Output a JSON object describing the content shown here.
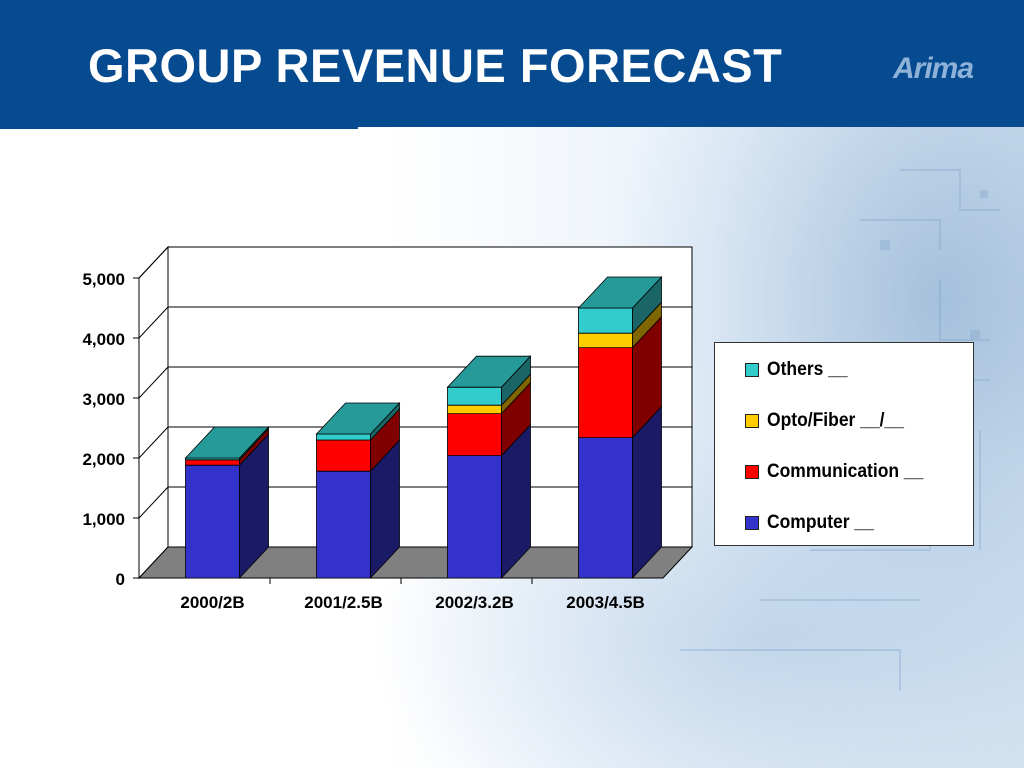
{
  "slide": {
    "title": "GROUP REVENUE FORECAST",
    "logo_text": "Arima",
    "header_color": "#064a90"
  },
  "chart_data": {
    "type": "bar",
    "stacked": true,
    "three_d": true,
    "categories": [
      "2000/2B",
      "2001/2.5B",
      "2002/3.2B",
      "2003/4.5B"
    ],
    "series": [
      {
        "name": "Computer __",
        "color": "#3333cc",
        "values": [
          1880,
          1780,
          2040,
          2340
        ]
      },
      {
        "name": "Communication __",
        "color": "#ff0000",
        "values": [
          90,
          520,
          700,
          1500
        ]
      },
      {
        "name": "Opto/Fiber __/__",
        "color": "#ffcc00",
        "values": [
          0,
          0,
          140,
          240
        ]
      },
      {
        "name": "Others __",
        "color": "#33cccc",
        "values": [
          30,
          100,
          300,
          420
        ]
      }
    ],
    "yticks": [
      "0",
      "1,000",
      "2,000",
      "3,000",
      "4,000",
      "5,000"
    ],
    "ylim": [
      0,
      5000
    ],
    "grid": true,
    "legend_position": "right",
    "legend_order": [
      "Others __",
      "Opto/Fiber __/__",
      "Communication __",
      "Computer __"
    ]
  }
}
